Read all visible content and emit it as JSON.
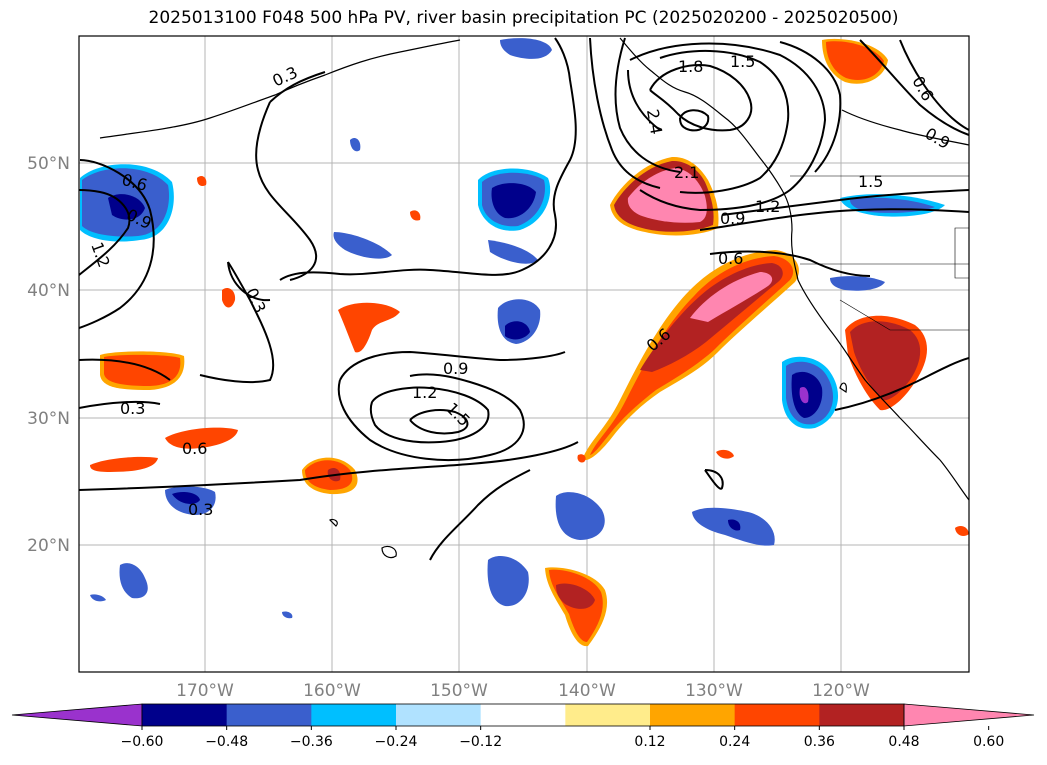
{
  "title": "2025013100 F048 500 hPa PV, river basin precipitation PC (2025020200 - 2025020500)",
  "lat_labels": [
    "50°N",
    "40°N",
    "30°N",
    "20°N"
  ],
  "lon_labels": [
    "170°W",
    "160°W",
    "150°W",
    "140°W",
    "130°W",
    "120°W"
  ],
  "contour_labels": [
    "0.3",
    "0.6",
    "0.9",
    "1.2",
    "1.5",
    "1.8",
    "2.1",
    "2.4"
  ],
  "colorbar": {
    "ticks": [
      "−0.60",
      "−0.48",
      "−0.36",
      "−0.24",
      "−0.12",
      "0.12",
      "0.24",
      "0.36",
      "0.48",
      "0.60"
    ],
    "colors": [
      "#9a32cd",
      "#00008b",
      "#3a5fcd",
      "#00bfff",
      "#b0e2ff",
      "#ffffff",
      "#ffec8b",
      "#ffa500",
      "#ff4500",
      "#b22222",
      "#ff86b0"
    ]
  }
}
